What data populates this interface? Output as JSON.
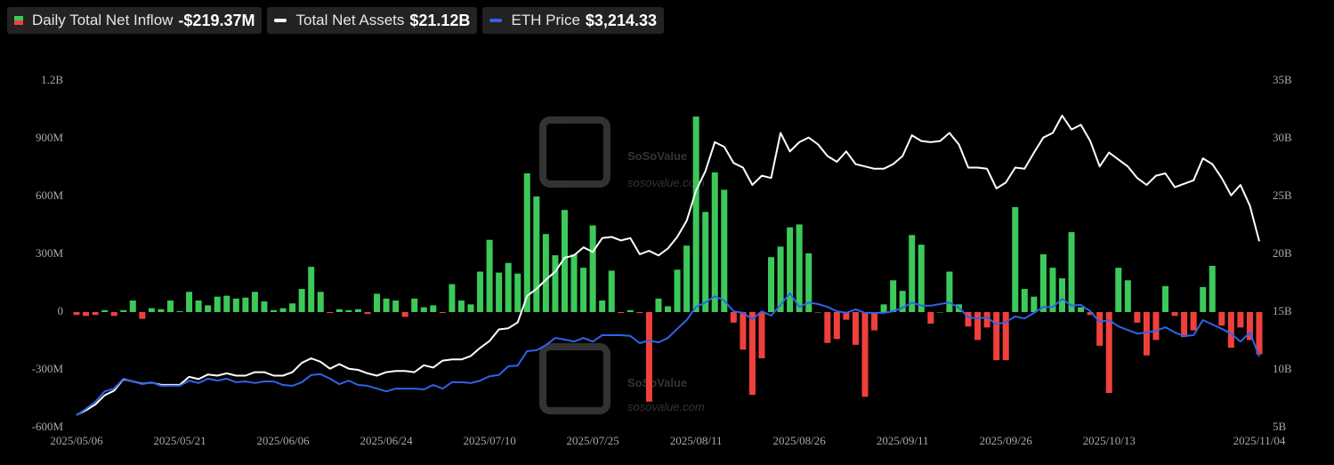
{
  "chart_data": {
    "type": "bar-line",
    "watermark": {
      "name": "SoSoValue",
      "url": "sosovalue.com"
    },
    "x": [
      "2025/05/06",
      "2025/05/07",
      "2025/05/08",
      "2025/05/09",
      "2025/05/12",
      "2025/05/13",
      "2025/05/14",
      "2025/05/15",
      "2025/05/16",
      "2025/05/19",
      "2025/05/20",
      "2025/05/21",
      "2025/05/22",
      "2025/05/23",
      "2025/05/27",
      "2025/05/28",
      "2025/05/29",
      "2025/05/30",
      "2025/06/02",
      "2025/06/03",
      "2025/06/04",
      "2025/06/05",
      "2025/06/06",
      "2025/06/09",
      "2025/06/10",
      "2025/06/11",
      "2025/06/12",
      "2025/06/13",
      "2025/06/16",
      "2025/06/17",
      "2025/06/18",
      "2025/06/20",
      "2025/06/23",
      "2025/06/24",
      "2025/06/25",
      "2025/06/26",
      "2025/06/27",
      "2025/06/30",
      "2025/07/01",
      "2025/07/02",
      "2025/07/03",
      "2025/07/07",
      "2025/07/08",
      "2025/07/09",
      "2025/07/10",
      "2025/07/11",
      "2025/07/14",
      "2025/07/15",
      "2025/07/16",
      "2025/07/17",
      "2025/07/18",
      "2025/07/21",
      "2025/07/22",
      "2025/07/23",
      "2025/07/24",
      "2025/07/25",
      "2025/07/28",
      "2025/07/29",
      "2025/07/30",
      "2025/07/31",
      "2025/08/01",
      "2025/08/04",
      "2025/08/05",
      "2025/08/06",
      "2025/08/07",
      "2025/08/08",
      "2025/08/11",
      "2025/08/12",
      "2025/08/13",
      "2025/08/14",
      "2025/08/15",
      "2025/08/18",
      "2025/08/19",
      "2025/08/20",
      "2025/08/21",
      "2025/08/22",
      "2025/08/25",
      "2025/08/26",
      "2025/08/27",
      "2025/08/28",
      "2025/08/29",
      "2025/09/02",
      "2025/09/03",
      "2025/09/04",
      "2025/09/05",
      "2025/09/08",
      "2025/09/09",
      "2025/09/10",
      "2025/09/11",
      "2025/09/12",
      "2025/09/15",
      "2025/09/16",
      "2025/09/17",
      "2025/09/18",
      "2025/09/19",
      "2025/09/22",
      "2025/09/23",
      "2025/09/24",
      "2025/09/25",
      "2025/09/26",
      "2025/09/29",
      "2025/09/30",
      "2025/10/01",
      "2025/10/02",
      "2025/10/03",
      "2025/10/06",
      "2025/10/07",
      "2025/10/08",
      "2025/10/09",
      "2025/10/10",
      "2025/10/13",
      "2025/10/14",
      "2025/10/15",
      "2025/10/16",
      "2025/10/17",
      "2025/10/20",
      "2025/10/21",
      "2025/10/22",
      "2025/10/23",
      "2025/10/24",
      "2025/10/27",
      "2025/10/28",
      "2025/10/29",
      "2025/10/30",
      "2025/10/31",
      "2025/11/03",
      "2025/11/04"
    ],
    "xticks": [
      "2025/05/06",
      "2025/05/21",
      "2025/06/06",
      "2025/06/24",
      "2025/07/10",
      "2025/07/25",
      "2025/08/11",
      "2025/08/26",
      "2025/09/11",
      "2025/09/26",
      "2025/10/13",
      "2025/11/04"
    ],
    "ylim": [
      -600,
      1200
    ],
    "yticks": [
      {
        "value": 1200,
        "label": "1.2B"
      },
      {
        "value": 900,
        "label": "900M"
      },
      {
        "value": 600,
        "label": "600M"
      },
      {
        "value": 300,
        "label": "300M"
      },
      0,
      {
        "value": -300,
        "label": "-300M"
      },
      {
        "value": -600,
        "label": "-600M"
      }
    ],
    "y2lim": [
      5,
      35
    ],
    "y2ticks": [
      {
        "value": 35,
        "label": "35B"
      },
      {
        "value": 30,
        "label": "30B"
      },
      {
        "value": 25,
        "label": "25B"
      },
      {
        "value": 20,
        "label": "20B"
      },
      {
        "value": 15,
        "label": "15B"
      },
      {
        "value": 10,
        "label": "10B"
      },
      {
        "value": 5,
        "label": "5B"
      }
    ],
    "y3lim": [
      1430,
      10130
    ],
    "grid": false,
    "series": [
      {
        "name": "Daily Total Net Inflow",
        "latest_label": "-$219.37M",
        "type": "bar",
        "color": "#3cc95a",
        "negative_color": "#f0403c",
        "values": [
          -15,
          -20,
          -15,
          10,
          -20,
          10,
          60,
          -35,
          20,
          15,
          60,
          5,
          105,
          60,
          35,
          80,
          85,
          70,
          75,
          105,
          55,
          10,
          20,
          45,
          120,
          235,
          105,
          -5,
          15,
          10,
          15,
          -10,
          95,
          70,
          60,
          -25,
          70,
          25,
          35,
          -5,
          145,
          60,
          40,
          210,
          375,
          205,
          255,
          200,
          720,
          600,
          405,
          295,
          530,
          300,
          230,
          450,
          60,
          215,
          -5,
          10,
          -5,
          -465,
          70,
          30,
          220,
          345,
          1015,
          520,
          725,
          635,
          -55,
          -195,
          -430,
          -240,
          285,
          340,
          440,
          455,
          305,
          0,
          -160,
          -140,
          -40,
          -170,
          -440,
          -95,
          40,
          165,
          110,
          400,
          350,
          -60,
          0,
          210,
          40,
          -75,
          -145,
          -80,
          -250,
          -250,
          545,
          120,
          80,
          300,
          230,
          175,
          415,
          25,
          -15,
          -175,
          -420,
          230,
          165,
          -55,
          -225,
          -145,
          135,
          -20,
          -130,
          -95,
          130,
          240,
          -70,
          -185,
          -80,
          -145,
          -219.37
        ]
      },
      {
        "name": "Total Net Assets",
        "latest_label": "$21.12B",
        "type": "line",
        "axis": "y2",
        "color": "#ffffff",
        "values": [
          6.1,
          6.5,
          7,
          7.8,
          8.2,
          9.2,
          9,
          8.8,
          8.9,
          8.7,
          8.7,
          8.7,
          9.4,
          9.2,
          9.6,
          9.5,
          9.7,
          9.5,
          9.5,
          9.8,
          9.8,
          9.5,
          9.5,
          9.8,
          10.6,
          11,
          10.7,
          10.1,
          10.5,
          10.1,
          10,
          9.7,
          9.5,
          9.8,
          9.9,
          9.9,
          9.8,
          10.4,
          10.2,
          10.8,
          10.9,
          10.9,
          11.2,
          11.9,
          12.5,
          13.5,
          13.6,
          14.1,
          16.4,
          17,
          17.8,
          18.5,
          19.7,
          19.9,
          20.6,
          20.2,
          21.4,
          21.5,
          21.2,
          21.4,
          20,
          20.3,
          19.9,
          20.5,
          21.5,
          22.9,
          25.5,
          27.2,
          29.7,
          29.3,
          27.9,
          27.5,
          26,
          26.8,
          26.6,
          30.5,
          28.9,
          29.7,
          30.1,
          29.5,
          28.5,
          28,
          28.9,
          27.8,
          27.6,
          27.4,
          27.4,
          27.8,
          28.5,
          30.3,
          29.8,
          29.7,
          29.8,
          30.5,
          29.5,
          27.5,
          27.5,
          27.4,
          25.7,
          26.2,
          27.5,
          27.4,
          28.8,
          30.1,
          30.5,
          32,
          30.8,
          31.2,
          29.8,
          27.6,
          28.8,
          28.2,
          27.6,
          26.6,
          26,
          26.8,
          27,
          25.8,
          26.1,
          26.4,
          28.3,
          27.8,
          26.6,
          25.1,
          26,
          24.2,
          21.12
        ]
      },
      {
        "name": "ETH Price",
        "latest_label": "$3,214.33",
        "type": "line",
        "axis": "y3",
        "color": "#2f63e8",
        "values": [
          1740,
          1900,
          2080,
          2340,
          2410,
          2660,
          2590,
          2520,
          2570,
          2480,
          2480,
          2480,
          2610,
          2550,
          2660,
          2610,
          2660,
          2570,
          2590,
          2550,
          2590,
          2590,
          2500,
          2480,
          2570,
          2750,
          2770,
          2660,
          2520,
          2610,
          2500,
          2480,
          2410,
          2340,
          2410,
          2410,
          2410,
          2390,
          2500,
          2410,
          2570,
          2570,
          2550,
          2610,
          2720,
          2750,
          2970,
          2990,
          3350,
          3370,
          3500,
          3680,
          3640,
          3590,
          3680,
          3590,
          3750,
          3750,
          3750,
          3730,
          3550,
          3620,
          3570,
          3680,
          3910,
          4130,
          4460,
          4570,
          4730,
          4620,
          4350,
          4310,
          4150,
          4350,
          4240,
          4510,
          4800,
          4460,
          4570,
          4530,
          4460,
          4350,
          4310,
          4400,
          4310,
          4310,
          4310,
          4350,
          4440,
          4570,
          4490,
          4490,
          4530,
          4570,
          4440,
          4200,
          4170,
          4200,
          4020,
          4080,
          4220,
          4170,
          4310,
          4460,
          4460,
          4660,
          4490,
          4510,
          4350,
          4080,
          4130,
          3970,
          3880,
          3790,
          3820,
          3860,
          3950,
          3820,
          3730,
          3750,
          4130,
          4020,
          3910,
          3790,
          3590,
          3820,
          3214.33
        ]
      }
    ]
  }
}
